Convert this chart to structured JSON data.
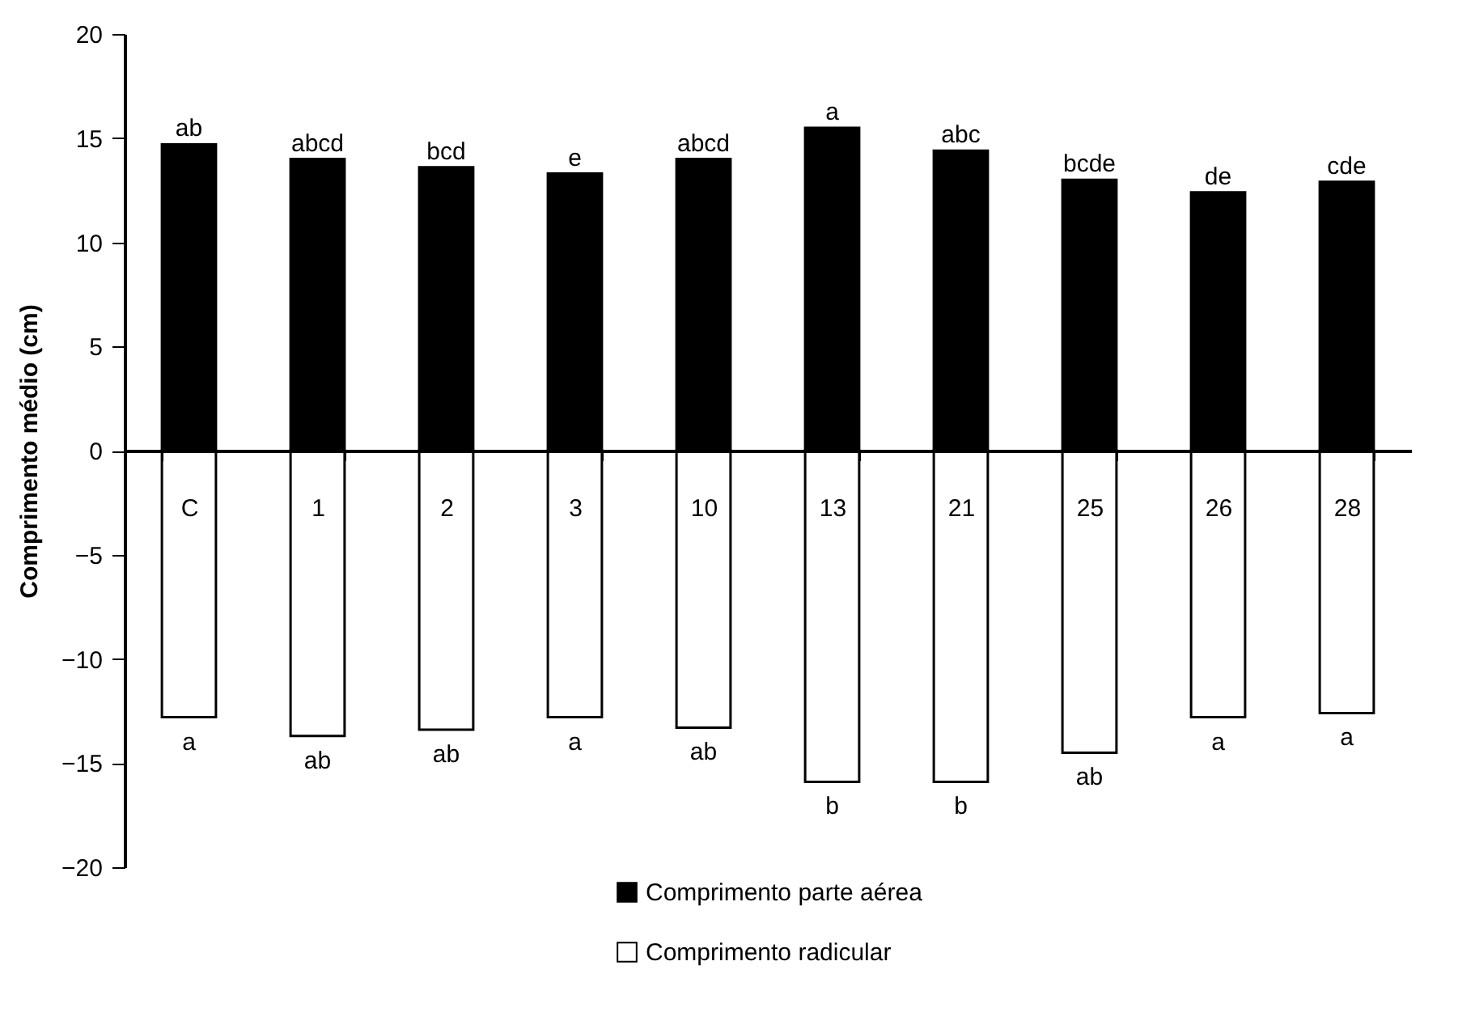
{
  "chart_data": {
    "type": "bar",
    "ylabel": "Comprimento médio (cm)",
    "categories": [
      "C",
      "1",
      "2",
      "3",
      "10",
      "13",
      "21",
      "25",
      "26",
      "28"
    ],
    "series": [
      {
        "name": "Comprimento parte aérea",
        "color": "#000000",
        "values": [
          14.7,
          14.0,
          13.6,
          13.3,
          14.0,
          15.5,
          14.4,
          13.0,
          12.4,
          12.9
        ],
        "value_labels": [
          "ab",
          "abcd",
          "bcd",
          "e",
          "abcd",
          "a",
          "abc",
          "bcde",
          "de",
          "cde"
        ]
      },
      {
        "name": "Comprimento radicular",
        "color": "#ffffff",
        "values": [
          -12.8,
          -13.7,
          -13.4,
          -12.8,
          -13.3,
          -15.9,
          -15.9,
          -14.5,
          -12.8,
          -12.6
        ],
        "value_labels": [
          "a",
          "ab",
          "ab",
          "a",
          "ab",
          "b",
          "b",
          "ab",
          "a",
          "a"
        ]
      }
    ],
    "ylim": [
      -20,
      20
    ],
    "yticks": [
      -20,
      -15,
      -10,
      -5,
      0,
      5,
      10,
      15,
      20
    ],
    "stacked": true,
    "grid": false,
    "legend": "bottom"
  }
}
